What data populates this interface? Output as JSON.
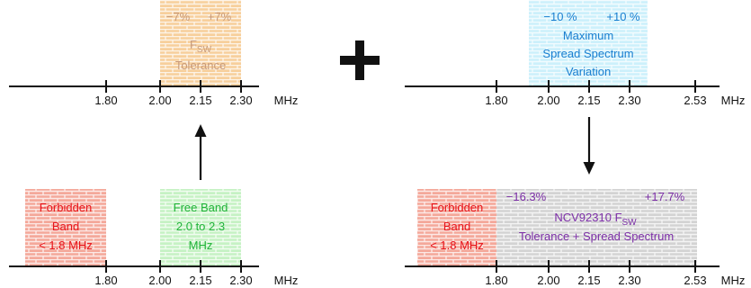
{
  "colors": {
    "axis": "#111111",
    "forbidden_fill": "#f4a89a",
    "forbidden_text": "#e8141b",
    "free_fill": "#c6f2c4",
    "free_text": "#21b33a",
    "fsw_fill": "#f7cf9c",
    "fsw_text": "#c89a7a",
    "spread_fill": "#ccf0fb",
    "spread_text": "#1b7fd0",
    "combined_fill": "#d3d3d3",
    "combined_text": "#7d2fa8"
  },
  "icons": {
    "plus": "plus-icon",
    "arrow_up": "arrow-up-icon",
    "arrow_down": "arrow-down-icon"
  },
  "top_left": {
    "unit": "MHz",
    "ticks": [
      "1.80",
      "2.00",
      "2.15",
      "2.30"
    ],
    "fsw_box": {
      "minus": "−7%",
      "plus": "+7%",
      "line2_main": "F",
      "line2_sub": "SW",
      "line3": "Tolerance"
    }
  },
  "top_right": {
    "unit": "MHz",
    "ticks": [
      "1.80",
      "2.00",
      "2.15",
      "2.30",
      "2.53"
    ],
    "spread_box": {
      "minus": "−10 %",
      "plus": "+10 %",
      "line2": "Maximum",
      "line3": "Spread Spectrum",
      "line4": "Variation"
    }
  },
  "bottom_left": {
    "unit": "MHz",
    "ticks": [
      "1.80",
      "2.00",
      "2.15",
      "2.30"
    ],
    "forbidden_box": {
      "line1": "Forbidden",
      "line2": "Band",
      "line3": "< 1.8 MHz"
    },
    "free_box": {
      "line1": "Free Band",
      "line2": "2.0 to 2.3",
      "line3": "MHz"
    }
  },
  "bottom_right": {
    "unit": "MHz",
    "ticks": [
      "1.80",
      "2.00",
      "2.15",
      "2.30",
      "2.53"
    ],
    "forbidden_box": {
      "line1": "Forbidden",
      "line2": "Band",
      "line3": "< 1.8 MHz"
    },
    "combined_box": {
      "minus": "−16.3%",
      "plus": "+17.7%",
      "line2_main": "NCV92310 F",
      "line2_sub": "SW",
      "line3": "Tolerance + Spread Spectrum"
    }
  }
}
